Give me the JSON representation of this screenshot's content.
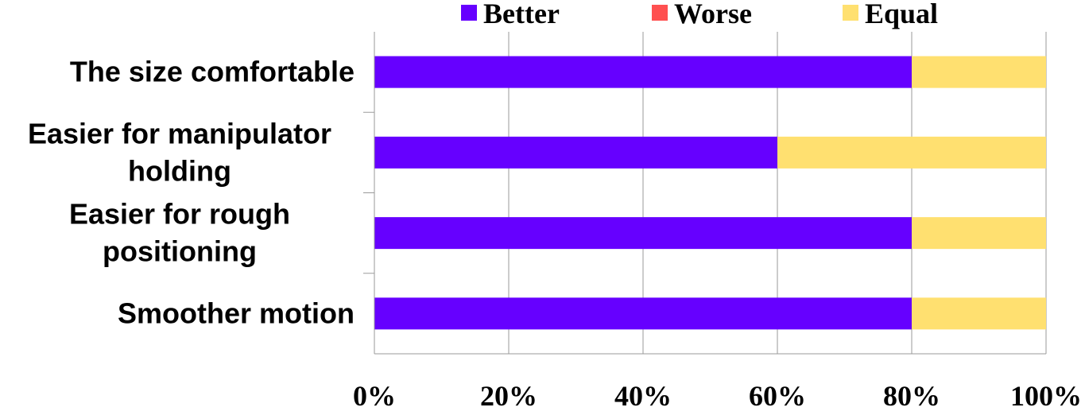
{
  "chart_data": {
    "type": "bar",
    "orientation": "horizontal",
    "stacked": true,
    "percent_stacked": true,
    "categories": [
      "The size comfortable",
      "Easier for manipulator holding",
      "Easier for rough positioning",
      "Smoother motion"
    ],
    "series": [
      {
        "name": "Better",
        "color": "#6600FF",
        "values": [
          80,
          60,
          80,
          80
        ]
      },
      {
        "name": "Worse",
        "color": "#FF5050",
        "values": [
          0,
          0,
          0,
          0
        ]
      },
      {
        "name": "Equal",
        "color": "#FFE070",
        "values": [
          20,
          40,
          20,
          20
        ]
      }
    ],
    "x_ticks": [
      "0%",
      "20%",
      "40%",
      "60%",
      "80%",
      "100%"
    ],
    "xlim": [
      0,
      100
    ],
    "grid": "vertical",
    "legend_position": "top",
    "title": "",
    "xlabel": "",
    "ylabel": ""
  }
}
